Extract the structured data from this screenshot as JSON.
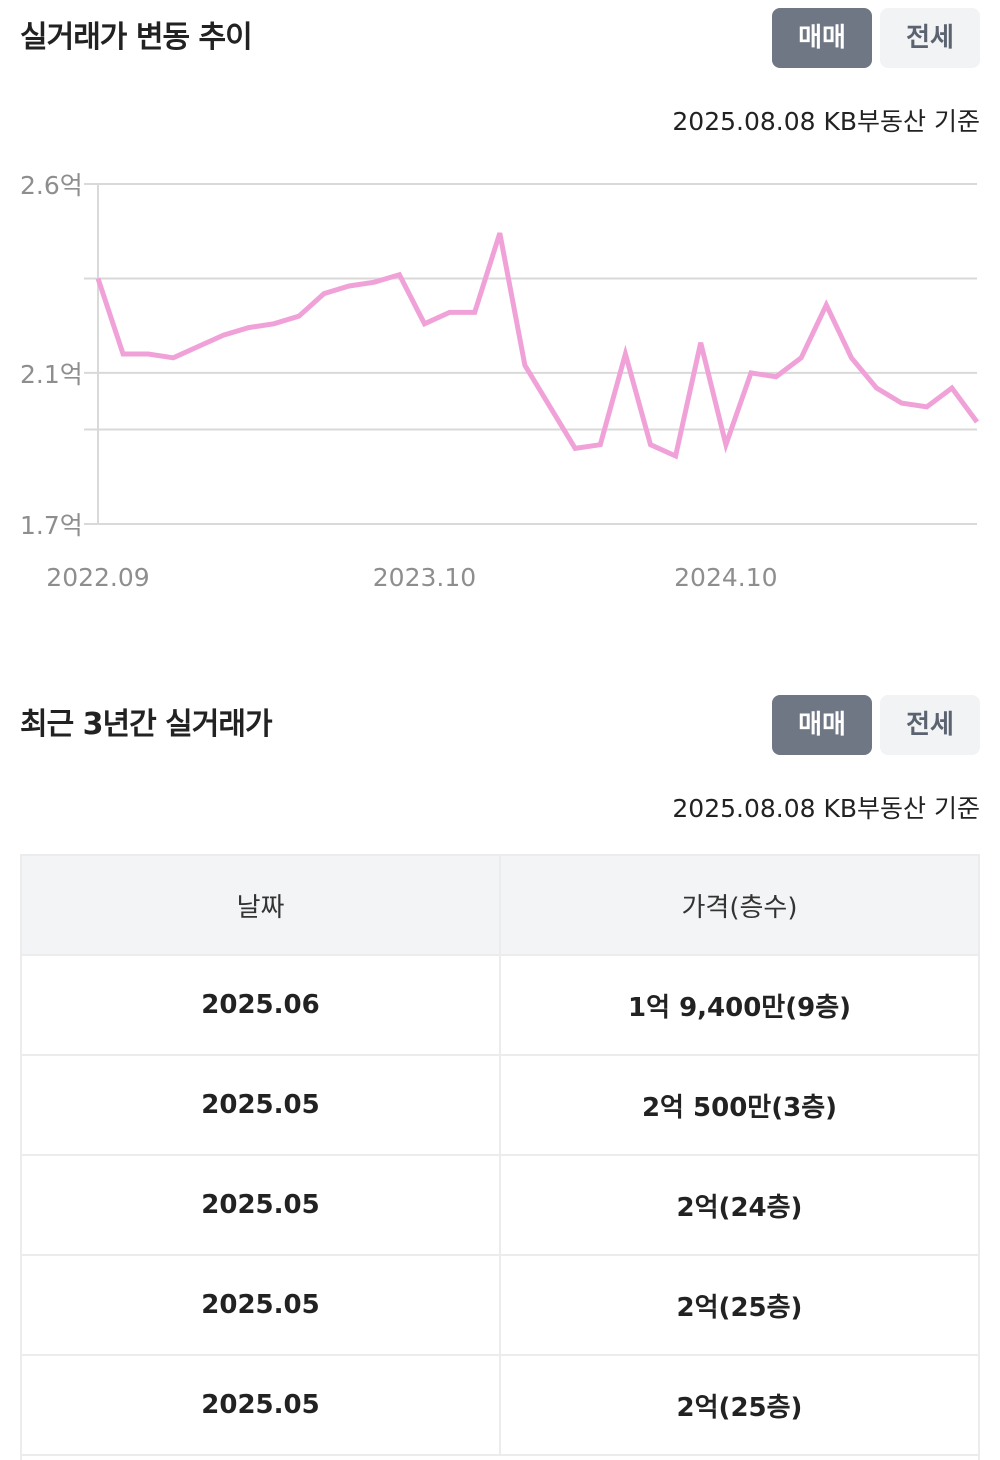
{
  "trend": {
    "title": "실거래가 변동 추이",
    "tabs": [
      "매매",
      "전세"
    ],
    "active_tab": "매매",
    "basis": "2025.08.08 KB부동산 기준"
  },
  "recent": {
    "title": "최근 3년간 실거래가",
    "tabs": [
      "매매",
      "전세"
    ],
    "active_tab": "매매",
    "basis": "2025.08.08 KB부동산 기준",
    "columns": [
      "날짜",
      "가격(층수)"
    ],
    "rows": [
      [
        "2025.06",
        "1억 9,400만(9층)"
      ],
      [
        "2025.05",
        "2억 500만(3층)"
      ],
      [
        "2025.05",
        "2억(24층)"
      ],
      [
        "2025.05",
        "2억(25층)"
      ],
      [
        "2025.05",
        "2억(25층)"
      ]
    ]
  },
  "colors": {
    "line": "#f0a2d8",
    "active_button": "#707784",
    "inactive_button": "#f2f3f5",
    "grid": "#d9d9d9"
  },
  "chart_data": {
    "type": "line",
    "title": "",
    "xlabel": "",
    "ylabel": "",
    "ylim": [
      1.7,
      2.6
    ],
    "xlim": [
      "2022.09",
      "2025.08"
    ],
    "y_ticks": [
      1.7,
      2.1,
      2.6
    ],
    "y_tick_labels": [
      "1.7억",
      "2.1억",
      "2.6억"
    ],
    "grid_lines": [
      1.7,
      1.95,
      2.1,
      2.35,
      2.6
    ],
    "x_ticks": [
      "2022.09",
      "2023.10",
      "2024.10"
    ],
    "grid": true,
    "legend": "none",
    "series": [
      {
        "x": [
          "2022.09",
          "2022.10",
          "2022.11",
          "2022.12",
          "2023.01",
          "2023.02",
          "2023.03",
          "2023.04",
          "2023.05",
          "2023.06",
          "2023.07",
          "2023.08",
          "2023.09",
          "2023.10",
          "2023.11",
          "2023.12",
          "2024.01",
          "2024.02",
          "2024.03",
          "2024.04",
          "2024.05",
          "2024.06",
          "2024.07",
          "2024.08",
          "2024.09",
          "2024.10",
          "2024.11",
          "2024.12",
          "2025.01",
          "2025.02",
          "2025.03",
          "2025.04",
          "2025.05",
          "2025.06",
          "2025.07",
          "2025.08"
        ],
        "values": [
          2.35,
          2.15,
          2.15,
          2.14,
          2.17,
          2.2,
          2.22,
          2.23,
          2.25,
          2.31,
          2.33,
          2.34,
          2.36,
          2.23,
          2.26,
          2.26,
          2.47,
          2.12,
          2.01,
          1.9,
          1.91,
          2.15,
          1.91,
          1.88,
          2.18,
          1.91,
          2.1,
          2.09,
          2.14,
          2.28,
          2.14,
          2.06,
          2.02,
          2.01,
          2.06,
          1.97
        ]
      }
    ]
  }
}
